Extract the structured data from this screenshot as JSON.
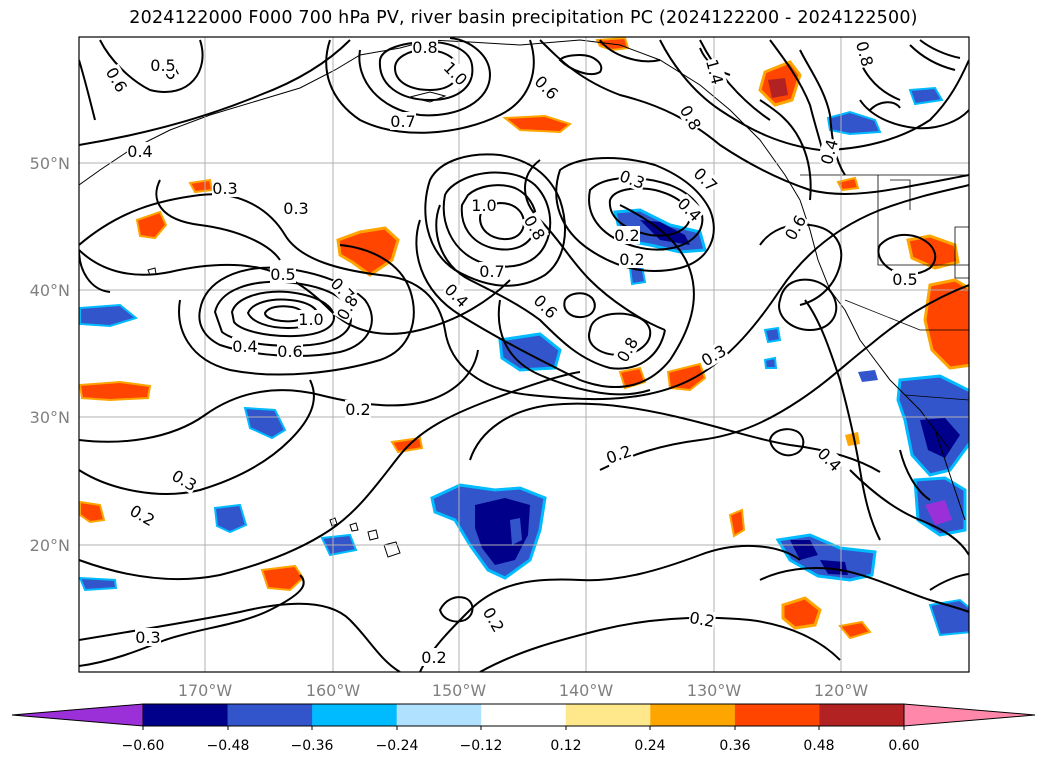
{
  "title": "2024122000 F000 700 hPa PV, river basin precipitation PC (2024122200 - 2024122500)",
  "map": {
    "lat_labels": [
      "50°N",
      "40°N",
      "30°N",
      "20°N"
    ],
    "lon_labels": [
      "170°W",
      "160°W",
      "150°W",
      "140°W",
      "130°W",
      "120°W"
    ],
    "contour_labels": [
      {
        "text": "0.6"
      },
      {
        "text": "0.5"
      },
      {
        "text": "0.4"
      },
      {
        "text": "0.8"
      },
      {
        "text": "1.0"
      },
      {
        "text": "0.7"
      },
      {
        "text": "0.6"
      },
      {
        "text": "1.4"
      },
      {
        "text": "0.8"
      },
      {
        "text": "0.6"
      },
      {
        "text": "0.3"
      },
      {
        "text": "0.3"
      },
      {
        "text": "1.0"
      },
      {
        "text": "0.8"
      },
      {
        "text": "0.3"
      },
      {
        "text": "0.2"
      },
      {
        "text": "0.4"
      },
      {
        "text": "0.7"
      },
      {
        "text": "0.8"
      },
      {
        "text": "0.5"
      },
      {
        "text": "0.5"
      },
      {
        "text": "0.2"
      },
      {
        "text": "0.5"
      },
      {
        "text": "0.7"
      },
      {
        "text": "0.8"
      },
      {
        "text": "1.0"
      },
      {
        "text": "0.4"
      },
      {
        "text": "0.6"
      },
      {
        "text": "0.7"
      },
      {
        "text": "0.4"
      },
      {
        "text": "0.6"
      },
      {
        "text": "0.8"
      },
      {
        "text": "0.3"
      },
      {
        "text": "0.2"
      },
      {
        "text": "0.4"
      },
      {
        "text": "0.3"
      },
      {
        "text": "0.2"
      },
      {
        "text": "0.2"
      },
      {
        "text": "0.2"
      },
      {
        "text": "0.3"
      },
      {
        "text": "0.4"
      },
      {
        "text": "0.2"
      },
      {
        "text": "0.2"
      }
    ]
  },
  "colorbar": {
    "colors": [
      "#9b30d9",
      "#00008b",
      "#3355cc",
      "#00bbff",
      "#b0e2ff",
      "#ffffff",
      "#ffe88c",
      "#ffa500",
      "#ff4500",
      "#b22222",
      "#ff88aa"
    ],
    "ticks": [
      "−0.60",
      "−0.48",
      "−0.36",
      "−0.24",
      "−0.12",
      "0.12",
      "0.24",
      "0.36",
      "0.48",
      "0.60"
    ]
  }
}
